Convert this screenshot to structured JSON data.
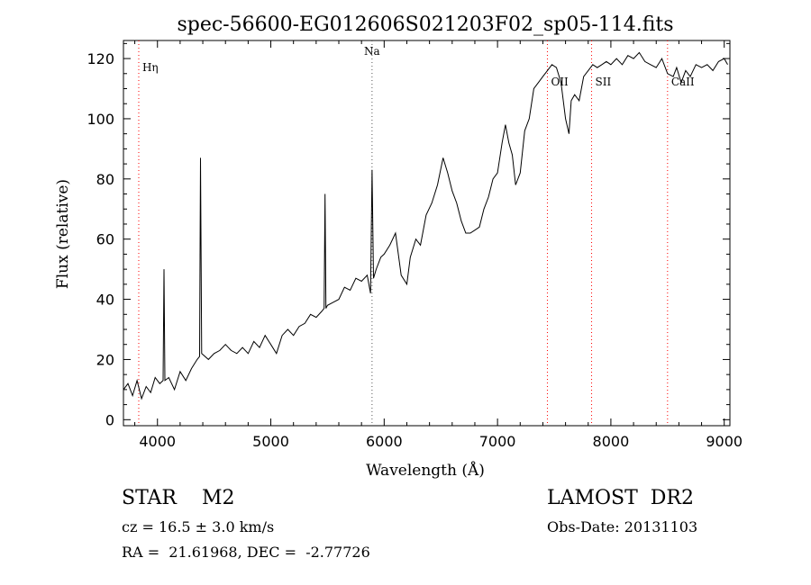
{
  "chart_data": {
    "type": "line",
    "title": "spec-56600-EG012606S021203F02_sp05-114.fits",
    "xlabel": "Wavelength (Å)",
    "ylabel": "Flux (relative)",
    "xlim": [
      3700,
      9050
    ],
    "ylim": [
      -2,
      126
    ],
    "x_ticks": [
      4000,
      5000,
      6000,
      7000,
      8000,
      9000
    ],
    "y_ticks": [
      0,
      20,
      40,
      60,
      80,
      100,
      120
    ],
    "grid": false,
    "line_color": "#000000",
    "marker_color": "#ff0000",
    "lines": [
      {
        "label": "Hη",
        "x": 3835
      },
      {
        "label": "Na",
        "x": 5893
      },
      {
        "label": "OII",
        "x": 7440
      },
      {
        "label": "SII",
        "x": 7830
      },
      {
        "label": "CaII",
        "x": 8500
      }
    ],
    "series": [
      {
        "x": [
          3700,
          3740,
          3780,
          3820,
          3860,
          3900,
          3940,
          3980,
          4020,
          4050,
          4058,
          4066,
          4100,
          4150,
          4200,
          4250,
          4300,
          4350,
          4372,
          4380,
          4390,
          4450,
          4500,
          4550,
          4600,
          4650,
          4700,
          4750,
          4800,
          4850,
          4900,
          4950,
          5000,
          5050,
          5100,
          5150,
          5200,
          5250,
          5300,
          5350,
          5400,
          5450,
          5470,
          5478,
          5486,
          5500,
          5550,
          5600,
          5650,
          5700,
          5750,
          5800,
          5850,
          5880,
          5893,
          5906,
          5930,
          5970,
          6000,
          6050,
          6100,
          6150,
          6200,
          6230,
          6280,
          6320,
          6370,
          6420,
          6470,
          6520,
          6560,
          6600,
          6640,
          6680,
          6720,
          6760,
          6800,
          6840,
          6880,
          6920,
          6960,
          7000,
          7040,
          7070,
          7100,
          7130,
          7160,
          7200,
          7240,
          7280,
          7320,
          7360,
          7400,
          7440,
          7480,
          7520,
          7560,
          7600,
          7630,
          7650,
          7680,
          7720,
          7760,
          7800,
          7840,
          7880,
          7920,
          7960,
          8000,
          8050,
          8100,
          8150,
          8200,
          8250,
          8300,
          8350,
          8400,
          8450,
          8500,
          8550,
          8580,
          8620,
          8660,
          8700,
          8750,
          8800,
          8850,
          8900,
          8950,
          9000,
          9030
        ],
        "values": [
          10,
          12,
          8,
          13,
          7,
          11,
          9,
          14,
          12,
          13,
          50,
          13,
          14,
          10,
          16,
          13,
          17,
          20,
          21,
          87,
          22,
          20,
          22,
          23,
          25,
          23,
          22,
          24,
          22,
          26,
          24,
          28,
          25,
          22,
          28,
          30,
          28,
          31,
          32,
          35,
          34,
          36,
          37,
          75,
          37,
          38,
          39,
          40,
          44,
          43,
          47,
          46,
          48,
          42,
          83,
          47,
          50,
          54,
          55,
          58,
          62,
          48,
          45,
          54,
          60,
          58,
          68,
          72,
          78,
          87,
          82,
          76,
          72,
          66,
          62,
          62,
          63,
          64,
          70,
          74,
          80,
          82,
          92,
          98,
          92,
          88,
          78,
          82,
          96,
          100,
          110,
          112,
          114,
          116,
          118,
          117,
          112,
          100,
          95,
          106,
          108,
          106,
          114,
          116,
          118,
          117,
          118,
          119,
          118,
          120,
          118,
          121,
          120,
          122,
          119,
          118,
          117,
          120,
          115,
          114,
          117,
          112,
          116,
          114,
          118,
          117,
          118,
          116,
          119,
          120,
          118
        ]
      }
    ],
    "info": {
      "object_line": "STAR    M2",
      "survey": "LAMOST  DR2",
      "cz": "cz = 16.5 ± 3.0 km/s",
      "obs_date": "Obs-Date: 20131103",
      "coords": "RA =  21.61968, DEC =  -2.77726"
    }
  }
}
